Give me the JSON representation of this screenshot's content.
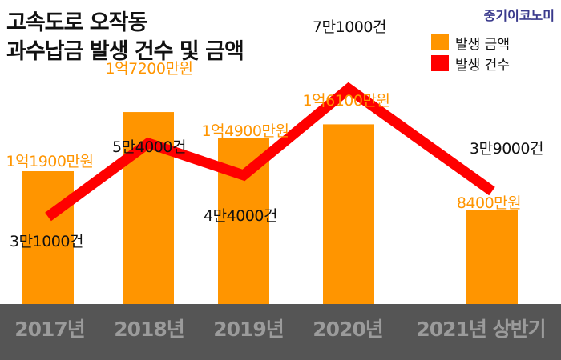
{
  "title_line1": "고속도로 오작동",
  "title_line2": "과수납금 발생 건수 및 금액",
  "brand": "중기이코노미",
  "colors": {
    "bar": "#ff9500",
    "amount_label": "#ff9500",
    "line": "#ff0000",
    "axis_band": "#555555",
    "axis_text": "#9b9b9b",
    "count_label": "#111111"
  },
  "chart_data": {
    "type": "bar+line",
    "title": "고속도로 오작동 과수납금 발생 건수 및 금액",
    "categories": [
      "2017년",
      "2018년",
      "2019년",
      "2020년",
      "2021년 상반기"
    ],
    "series": [
      {
        "name": "발생 금액",
        "type": "bar",
        "unit": "만원",
        "values": [
          11900,
          17200,
          14900,
          16100,
          8400
        ],
        "labels": [
          "1억1900만원",
          "1억7200만원",
          "1억4900만원",
          "1억6100만원",
          "8400만원"
        ]
      },
      {
        "name": "발생 건수",
        "type": "line",
        "unit": "건",
        "values": [
          31000,
          54000,
          44000,
          71000,
          39000
        ],
        "labels": [
          "3만1000건",
          "5만4000건",
          "4만4000건",
          "7만1000건",
          "3만9000건"
        ]
      }
    ],
    "legend_position": "top-right",
    "grid": false
  }
}
